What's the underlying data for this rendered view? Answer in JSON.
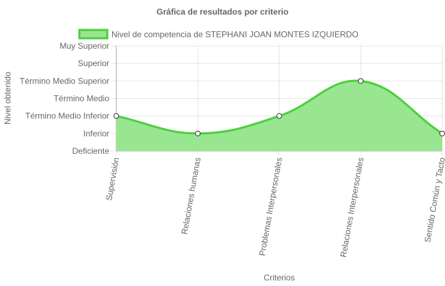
{
  "chart_data": {
    "type": "area",
    "title": "Gráfica de resultados por criterio",
    "xlabel": "Criterios",
    "ylabel": "Nivel obtenido",
    "categories": [
      "Supervisión",
      "Relaciones humanas",
      "Problemas Interpersonales",
      "Relaciones Interpersonales",
      "Sentido Común y Tacto"
    ],
    "y_levels": [
      "Deficiente",
      "Inferior",
      "Término Medio Inferior",
      "Término Medio",
      "Término Medio Superior",
      "Superior",
      "Muy Superior"
    ],
    "ylim": [
      0,
      6
    ],
    "series": [
      {
        "name": "Nivel de competencia de STEPHANI JOAN MONTES IZQUIERDO",
        "values": [
          2,
          1,
          2,
          4,
          1
        ],
        "value_labels": [
          "Término Medio Inferior",
          "Inferior",
          "Término Medio Inferior",
          "Término Medio Superior",
          "Inferior"
        ]
      }
    ],
    "legend_position": "top",
    "grid": true,
    "colors": {
      "fill": "#98e690",
      "line": "#4ccf3f",
      "point_fill": "#ffffff",
      "point_stroke": "#333333"
    }
  }
}
